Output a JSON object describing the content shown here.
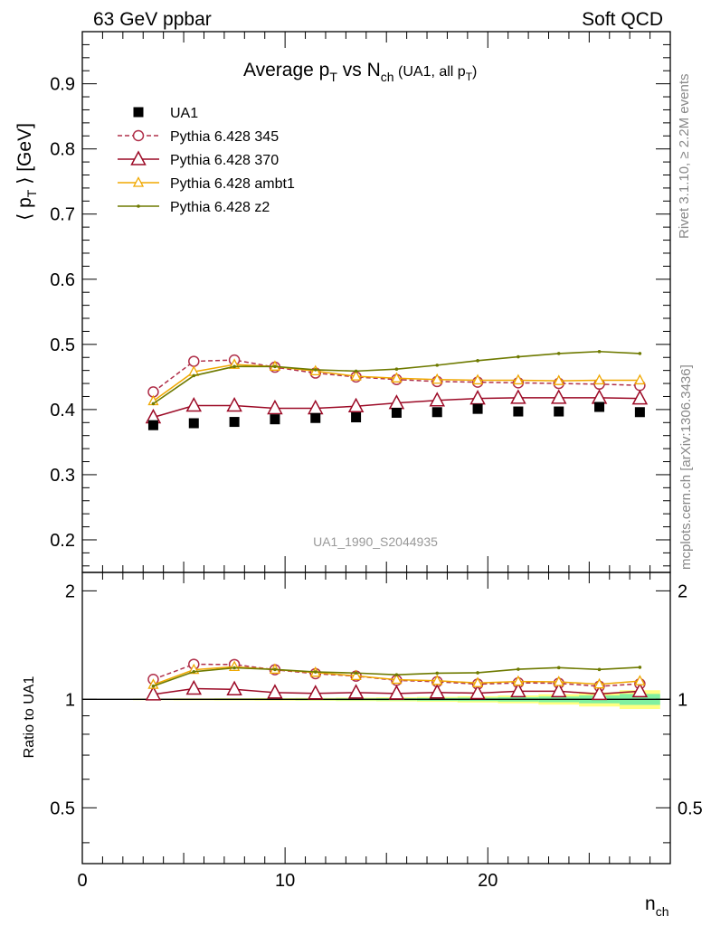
{
  "header": {
    "left": "63 GeV ppbar",
    "right": "Soft QCD"
  },
  "side_labels": {
    "rivet": "Rivet 3.1.10, ≥ 2.2M events",
    "mcplots": "mcplots.cern.ch [arXiv:1306.3436]"
  },
  "watermark": "UA1_1990_S2044935",
  "colors": {
    "data": "#000000",
    "p345": "#b0304a",
    "p370": "#9c0a26",
    "ambt1": "#f0a800",
    "z2": "#6e7a00",
    "band_inner": "#80f0a0",
    "band_outer": "#ffff80"
  },
  "chart_data": [
    {
      "type": "scatter",
      "title": "Average p_T vs N_ch (UA1, all p_T)",
      "title_parts": {
        "main": "Average p",
        "sub1": "T",
        "mid": " vs N",
        "sub2": "ch",
        "small": " (UA1, all p",
        "sub3": "T",
        "end": ")"
      },
      "xlabel": "n_ch",
      "xlabel_parts": {
        "main": "n",
        "sub": "ch"
      },
      "ylabel": "⟨ p_T ⟩ [GeV]",
      "ylabel_parts": {
        "pre": "⟨ p",
        "sub": "T",
        "post": " ⟩ [GeV]"
      },
      "xlim": [
        0,
        29
      ],
      "ylim": [
        0.15,
        0.98
      ],
      "xticks": [
        0,
        10,
        20
      ],
      "yticks": [
        0.2,
        0.3,
        0.4,
        0.5,
        0.6,
        0.7,
        0.8,
        0.9
      ],
      "legend_position": "top-left",
      "x": [
        3.5,
        5.5,
        7.5,
        9.5,
        11.5,
        13.5,
        15.5,
        17.5,
        19.5,
        21.5,
        23.5,
        25.5,
        27.5
      ],
      "series": [
        {
          "name": "UA1",
          "key": "data",
          "marker": "square",
          "values": [
            0.376,
            0.379,
            0.381,
            0.385,
            0.387,
            0.388,
            0.395,
            0.396,
            0.401,
            0.397,
            0.397,
            0.404,
            0.396
          ]
        },
        {
          "name": "Pythia 6.428 345",
          "key": "p345",
          "marker": "circle",
          "dashed": true,
          "values": [
            0.427,
            0.474,
            0.476,
            0.465,
            0.456,
            0.45,
            0.446,
            0.443,
            0.442,
            0.441,
            0.44,
            0.439,
            0.437
          ]
        },
        {
          "name": "Pythia 6.428 370",
          "key": "p370",
          "marker": "triangle",
          "values": [
            0.388,
            0.406,
            0.406,
            0.402,
            0.402,
            0.405,
            0.41,
            0.414,
            0.417,
            0.418,
            0.418,
            0.418,
            0.417
          ]
        },
        {
          "name": "Pythia 6.428 ambt1",
          "key": "ambt1",
          "marker": "small-triangle",
          "values": [
            0.413,
            0.458,
            0.469,
            0.466,
            0.459,
            0.451,
            0.448,
            0.446,
            0.445,
            0.445,
            0.444,
            0.445,
            0.445
          ]
        },
        {
          "name": "Pythia 6.428 z2",
          "key": "z2",
          "marker": "dot",
          "values": [
            0.409,
            0.452,
            0.466,
            0.466,
            0.461,
            0.459,
            0.462,
            0.468,
            0.475,
            0.481,
            0.486,
            0.489,
            0.486
          ]
        }
      ]
    },
    {
      "type": "line",
      "ylabel": "Ratio to UA1",
      "xlim": [
        0,
        29
      ],
      "ylim": [
        0.35,
        2.25
      ],
      "yticks": [
        0.5,
        1,
        2
      ],
      "ytick_labels": [
        "0.5",
        "1",
        "2"
      ],
      "reference": 1,
      "x": [
        3.5,
        5.5,
        7.5,
        9.5,
        11.5,
        13.5,
        15.5,
        17.5,
        19.5,
        21.5,
        23.5,
        25.5,
        27.5
      ],
      "band_inner": [
        0.003,
        0.003,
        0.004,
        0.004,
        0.005,
        0.006,
        0.007,
        0.009,
        0.011,
        0.014,
        0.018,
        0.025,
        0.035
      ],
      "band_outer": [
        0.005,
        0.006,
        0.007,
        0.008,
        0.009,
        0.011,
        0.013,
        0.016,
        0.02,
        0.025,
        0.033,
        0.045,
        0.06
      ],
      "series": [
        {
          "name": "Pythia 6.428 345",
          "key": "p345",
          "marker": "circle",
          "dashed": true,
          "values": [
            1.136,
            1.251,
            1.249,
            1.208,
            1.178,
            1.16,
            1.129,
            1.119,
            1.102,
            1.111,
            1.108,
            1.087,
            1.104
          ]
        },
        {
          "name": "Pythia 6.428 370",
          "key": "p370",
          "marker": "triangle",
          "values": [
            1.032,
            1.071,
            1.066,
            1.044,
            1.039,
            1.044,
            1.038,
            1.045,
            1.04,
            1.053,
            1.053,
            1.035,
            1.053
          ]
        },
        {
          "name": "Pythia 6.428 ambt1",
          "key": "ambt1",
          "marker": "small-triangle",
          "values": [
            1.098,
            1.208,
            1.231,
            1.21,
            1.186,
            1.162,
            1.134,
            1.126,
            1.11,
            1.121,
            1.118,
            1.101,
            1.124
          ]
        },
        {
          "name": "Pythia 6.428 z2",
          "key": "z2",
          "marker": "dot",
          "values": [
            1.088,
            1.193,
            1.223,
            1.21,
            1.191,
            1.183,
            1.17,
            1.182,
            1.185,
            1.212,
            1.224,
            1.21,
            1.227
          ]
        }
      ]
    }
  ]
}
